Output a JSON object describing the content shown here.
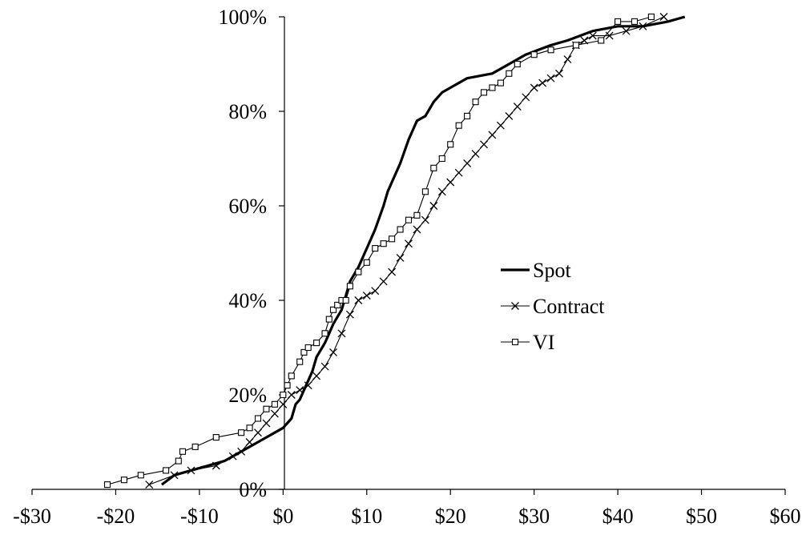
{
  "chart_data": {
    "type": "line",
    "title": "",
    "xlabel": "",
    "ylabel": "",
    "xlim": [
      -30,
      60
    ],
    "ylim": [
      0,
      100
    ],
    "x_ticks": [
      -30,
      -20,
      -10,
      0,
      10,
      20,
      30,
      40,
      50,
      60
    ],
    "x_tick_labels": [
      "-$30",
      "-$20",
      "-$10",
      "$0",
      "$10",
      "$20",
      "$30",
      "$40",
      "$50",
      "$60"
    ],
    "y_ticks": [
      0,
      20,
      40,
      60,
      80,
      100
    ],
    "y_tick_labels": [
      "0%",
      "20%",
      "40%",
      "60%",
      "80%",
      "100%"
    ],
    "grid": false,
    "legend_position": "right",
    "series": [
      {
        "name": "Spot",
        "color": "#000000",
        "marker": "none",
        "x": [
          -14.5,
          -13,
          -11,
          -9,
          -7,
          -6,
          -5,
          -4,
          -3,
          -2,
          -1,
          0,
          1,
          1.5,
          2,
          2.5,
          3,
          3.5,
          4,
          5,
          5.5,
          6,
          7,
          7.5,
          8,
          9,
          10,
          11,
          12,
          12.5,
          13,
          14,
          15,
          16,
          17,
          18,
          19,
          20,
          22,
          25,
          27,
          29,
          32,
          34,
          37,
          40,
          43,
          46,
          48
        ],
        "y": [
          1,
          3,
          4,
          5,
          6,
          7,
          8,
          9,
          10,
          11,
          12,
          13,
          15,
          18,
          19,
          21,
          23,
          25,
          28,
          31,
          33,
          35,
          38,
          41,
          44,
          47,
          51,
          55,
          60,
          63,
          65,
          69,
          74,
          78,
          79,
          82,
          84,
          85,
          87,
          88,
          90,
          92,
          94,
          95,
          97,
          98,
          98,
          99,
          100
        ]
      },
      {
        "name": "Contract",
        "color": "#000000",
        "marker": "x",
        "x": [
          -16,
          -13,
          -11,
          -8,
          -6,
          -5,
          -4,
          -3,
          -2,
          -1,
          0,
          1,
          2,
          3,
          4,
          5,
          6,
          7,
          8,
          9,
          10,
          11,
          12,
          13,
          14,
          15,
          16,
          17,
          18,
          19,
          20,
          21,
          22,
          23,
          24,
          25,
          26,
          27,
          28,
          29,
          30,
          31,
          32,
          33,
          34,
          35,
          36,
          37,
          39,
          41,
          43,
          45.5
        ],
        "y": [
          1,
          3,
          4,
          5,
          7,
          8,
          10,
          12,
          14,
          16,
          18,
          20,
          21,
          22,
          24,
          26,
          29,
          33,
          37,
          40,
          41,
          42,
          44,
          46,
          49,
          52,
          55,
          57,
          60,
          63,
          65,
          67,
          69,
          71,
          73,
          75,
          77,
          79,
          81,
          83,
          85,
          86,
          87,
          88,
          91,
          94,
          95,
          96,
          96,
          97,
          98,
          100
        ]
      },
      {
        "name": "VI",
        "color": "#000000",
        "marker": "square",
        "x": [
          -21,
          -19,
          -17,
          -14,
          -12.5,
          -12,
          -10.5,
          -8,
          -5,
          -4,
          -3,
          -2,
          -1,
          0,
          0.5,
          1,
          2,
          2.5,
          3,
          4,
          5,
          5.5,
          6,
          6.5,
          7,
          7.5,
          8,
          9,
          10,
          11,
          12,
          13,
          14,
          15,
          16,
          17,
          18,
          19,
          20,
          21,
          22,
          23,
          24,
          25,
          26,
          27,
          28,
          30,
          32,
          35,
          38,
          40,
          42,
          44
        ],
        "y": [
          1,
          2,
          3,
          4,
          6,
          8,
          9,
          11,
          12,
          13,
          15,
          17,
          18,
          20,
          22,
          24,
          27,
          29,
          30,
          31,
          33,
          36,
          38,
          39,
          40,
          40,
          43,
          46,
          48,
          51,
          52,
          53,
          55,
          57,
          58,
          63,
          68,
          70,
          73,
          77,
          79,
          82,
          84,
          85,
          86,
          88,
          90,
          92,
          93,
          94,
          95,
          99,
          99,
          100
        ]
      }
    ]
  }
}
